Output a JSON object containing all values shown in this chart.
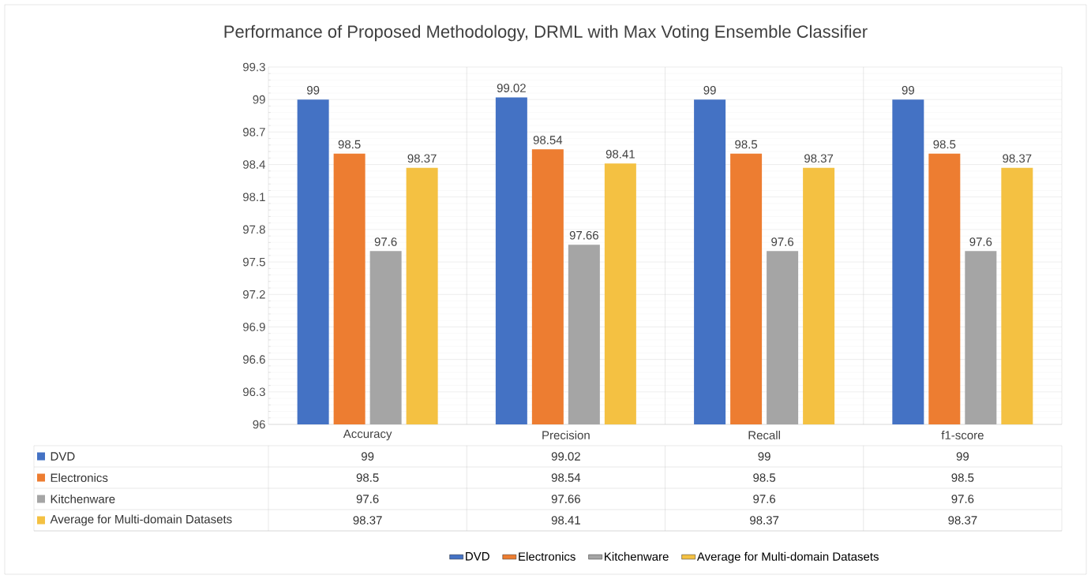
{
  "chart_data": {
    "type": "bar",
    "title": "Performance of Proposed Methodology, DRML with Max Voting Ensemble Classifier",
    "categories": [
      "Accuracy",
      "Precision",
      "Recall",
      "f1-score"
    ],
    "series": [
      {
        "name": "DVD",
        "color": "#4472c4",
        "values": [
          99,
          99.02,
          99,
          99
        ],
        "value_labels": [
          "99",
          "99.02",
          "99",
          "99"
        ]
      },
      {
        "name": "Electronics",
        "color": "#ed7d31",
        "values": [
          98.5,
          98.54,
          98.5,
          98.5
        ],
        "value_labels": [
          "98.5",
          "98.54",
          "98.5",
          "98.5"
        ]
      },
      {
        "name": "Kitchenware",
        "color": "#a5a5a5",
        "values": [
          97.6,
          97.66,
          97.6,
          97.6
        ],
        "value_labels": [
          "97.6",
          "97.66",
          "97.6",
          "97.6"
        ]
      },
      {
        "name": "Average for Multi-domain Datasets",
        "color": "#f4c142",
        "values": [
          98.37,
          98.41,
          98.37,
          98.37
        ],
        "value_labels": [
          "98.37",
          "98.41",
          "98.37",
          "98.37"
        ]
      }
    ],
    "ylim": [
      96,
      99.3
    ],
    "yticks": [
      96,
      96.3,
      96.6,
      96.9,
      97.2,
      97.5,
      97.8,
      98.1,
      98.4,
      98.7,
      99,
      99.3
    ],
    "grid": "y",
    "legend": "bottom"
  }
}
